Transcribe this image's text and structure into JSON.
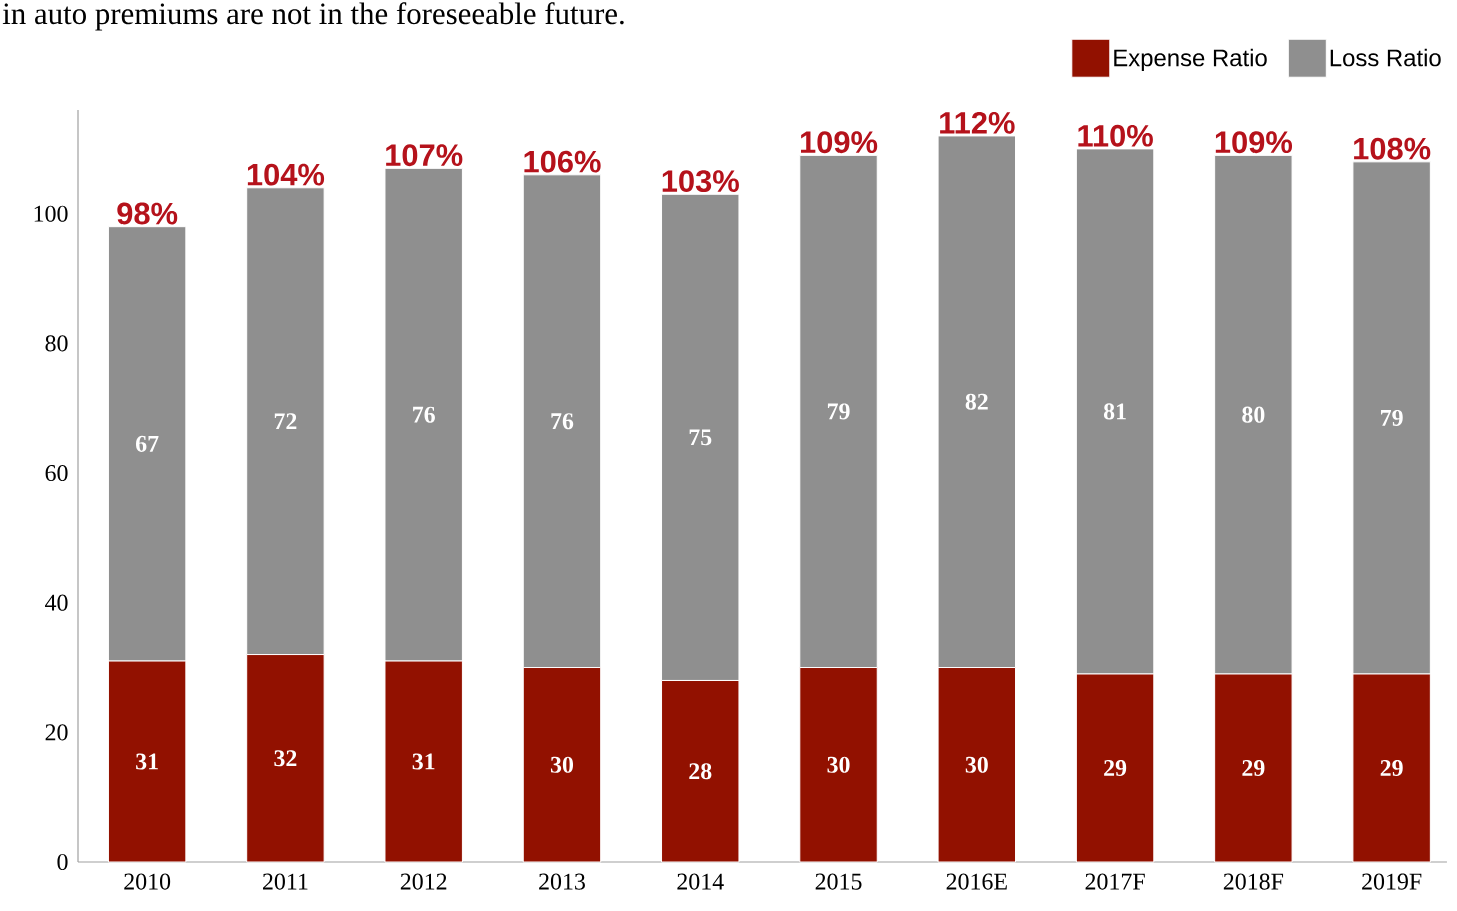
{
  "chart_data": {
    "type": "bar",
    "stacked": true,
    "annotations": [
      "in auto premiums are not in the foreseeable future."
    ],
    "categories": [
      "2010",
      "2011",
      "2012",
      "2013",
      "2014",
      "2015",
      "2016E",
      "2017F",
      "2018F",
      "2019F"
    ],
    "series": [
      {
        "name": "Expense Ratio",
        "color": "#921100",
        "values": [
          31,
          32,
          31,
          30,
          28,
          30,
          30,
          29,
          29,
          29
        ]
      },
      {
        "name": "Loss Ratio",
        "color": "#8f8f8f",
        "values": [
          67,
          72,
          76,
          76,
          75,
          79,
          82,
          81,
          80,
          79
        ]
      }
    ],
    "totals": [
      "98%",
      "104%",
      "107%",
      "106%",
      "103%",
      "109%",
      "112%",
      "110%",
      "109%",
      "108%"
    ],
    "data_labels": true,
    "legend": "top right",
    "ylim": [
      0,
      116
    ],
    "yticks": [
      0,
      20,
      40,
      60,
      80,
      100
    ]
  }
}
